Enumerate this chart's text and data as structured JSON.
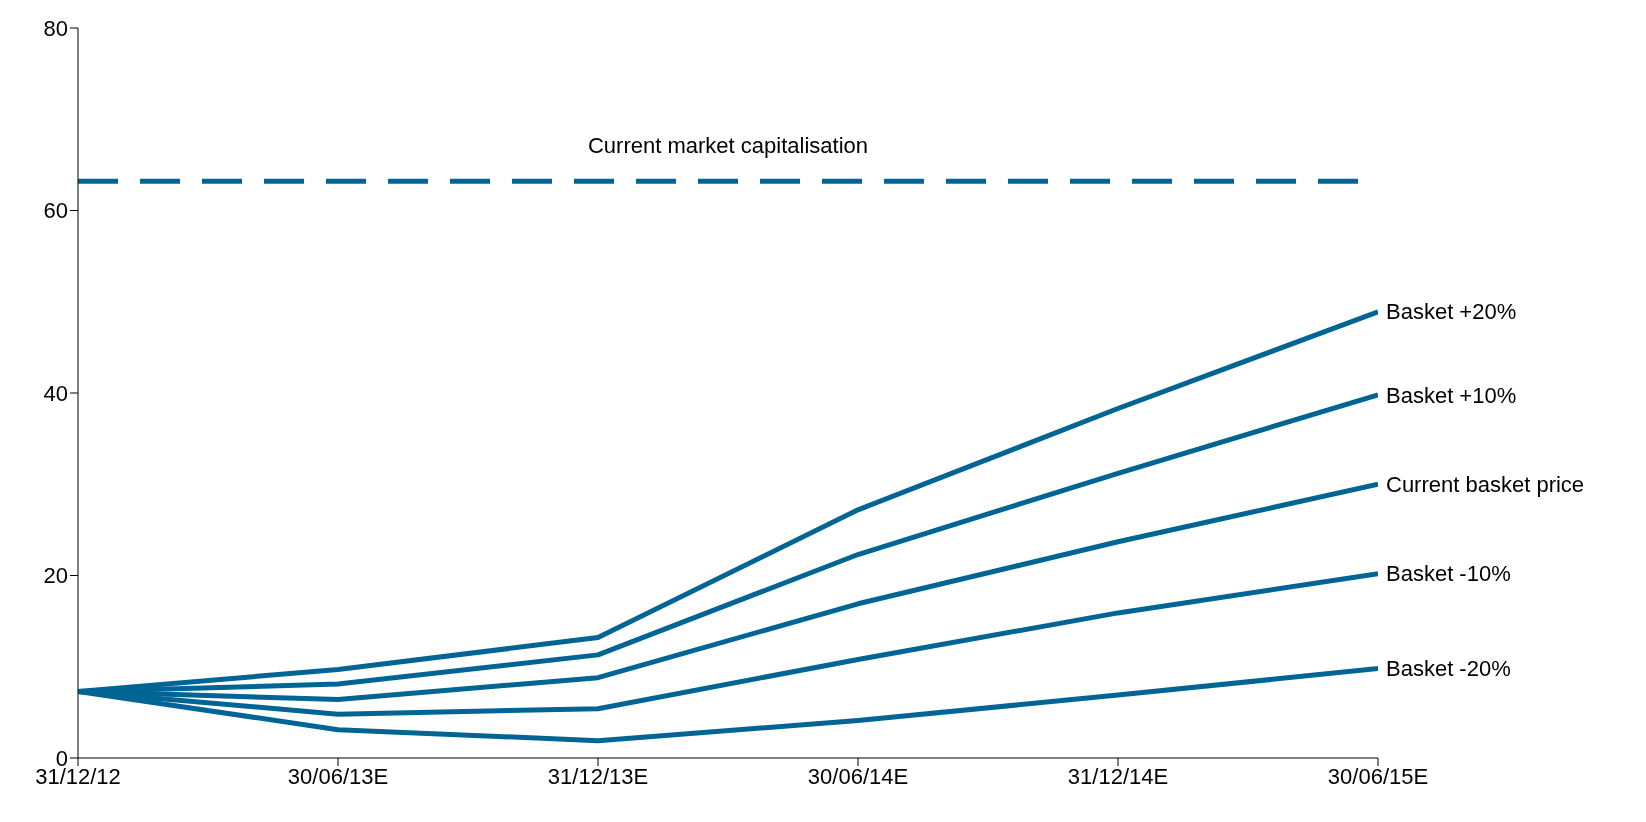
{
  "chart_data": {
    "type": "line",
    "categories": [
      "31/12/12",
      "30/06/13E",
      "31/12/13E",
      "30/06/14E",
      "31/12/14E",
      "30/06/15E"
    ],
    "series": [
      {
        "name": "Basket +20%",
        "color": "#006595",
        "values": [
          7.3,
          9.7,
          13.2,
          27.2,
          38.3,
          48.9
        ]
      },
      {
        "name": "Basket +10%",
        "color": "#006595",
        "values": [
          7.3,
          8.1,
          11.3,
          22.3,
          31.2,
          39.8
        ]
      },
      {
        "name": "Current basket price",
        "color": "#006595",
        "values": [
          7.3,
          6.4,
          8.8,
          16.9,
          23.7,
          30.0
        ]
      },
      {
        "name": "Basket -10%",
        "color": "#006595",
        "values": [
          7.3,
          4.8,
          5.4,
          10.8,
          15.9,
          20.2
        ]
      },
      {
        "name": "Basket -20%",
        "color": "#006595",
        "values": [
          7.3,
          3.1,
          1.9,
          4.1,
          6.9,
          9.8
        ]
      }
    ],
    "ylim": [
      0,
      80
    ],
    "yticks": [
      0,
      20,
      40,
      60,
      80
    ],
    "grid": false,
    "legend": false,
    "marker": "none",
    "line_style": "solid",
    "ref_lines": [
      {
        "axis": "y",
        "value": 63.2,
        "label": "Current market capitalisation",
        "color": "#006595",
        "line_style": "dashed"
      }
    ]
  }
}
